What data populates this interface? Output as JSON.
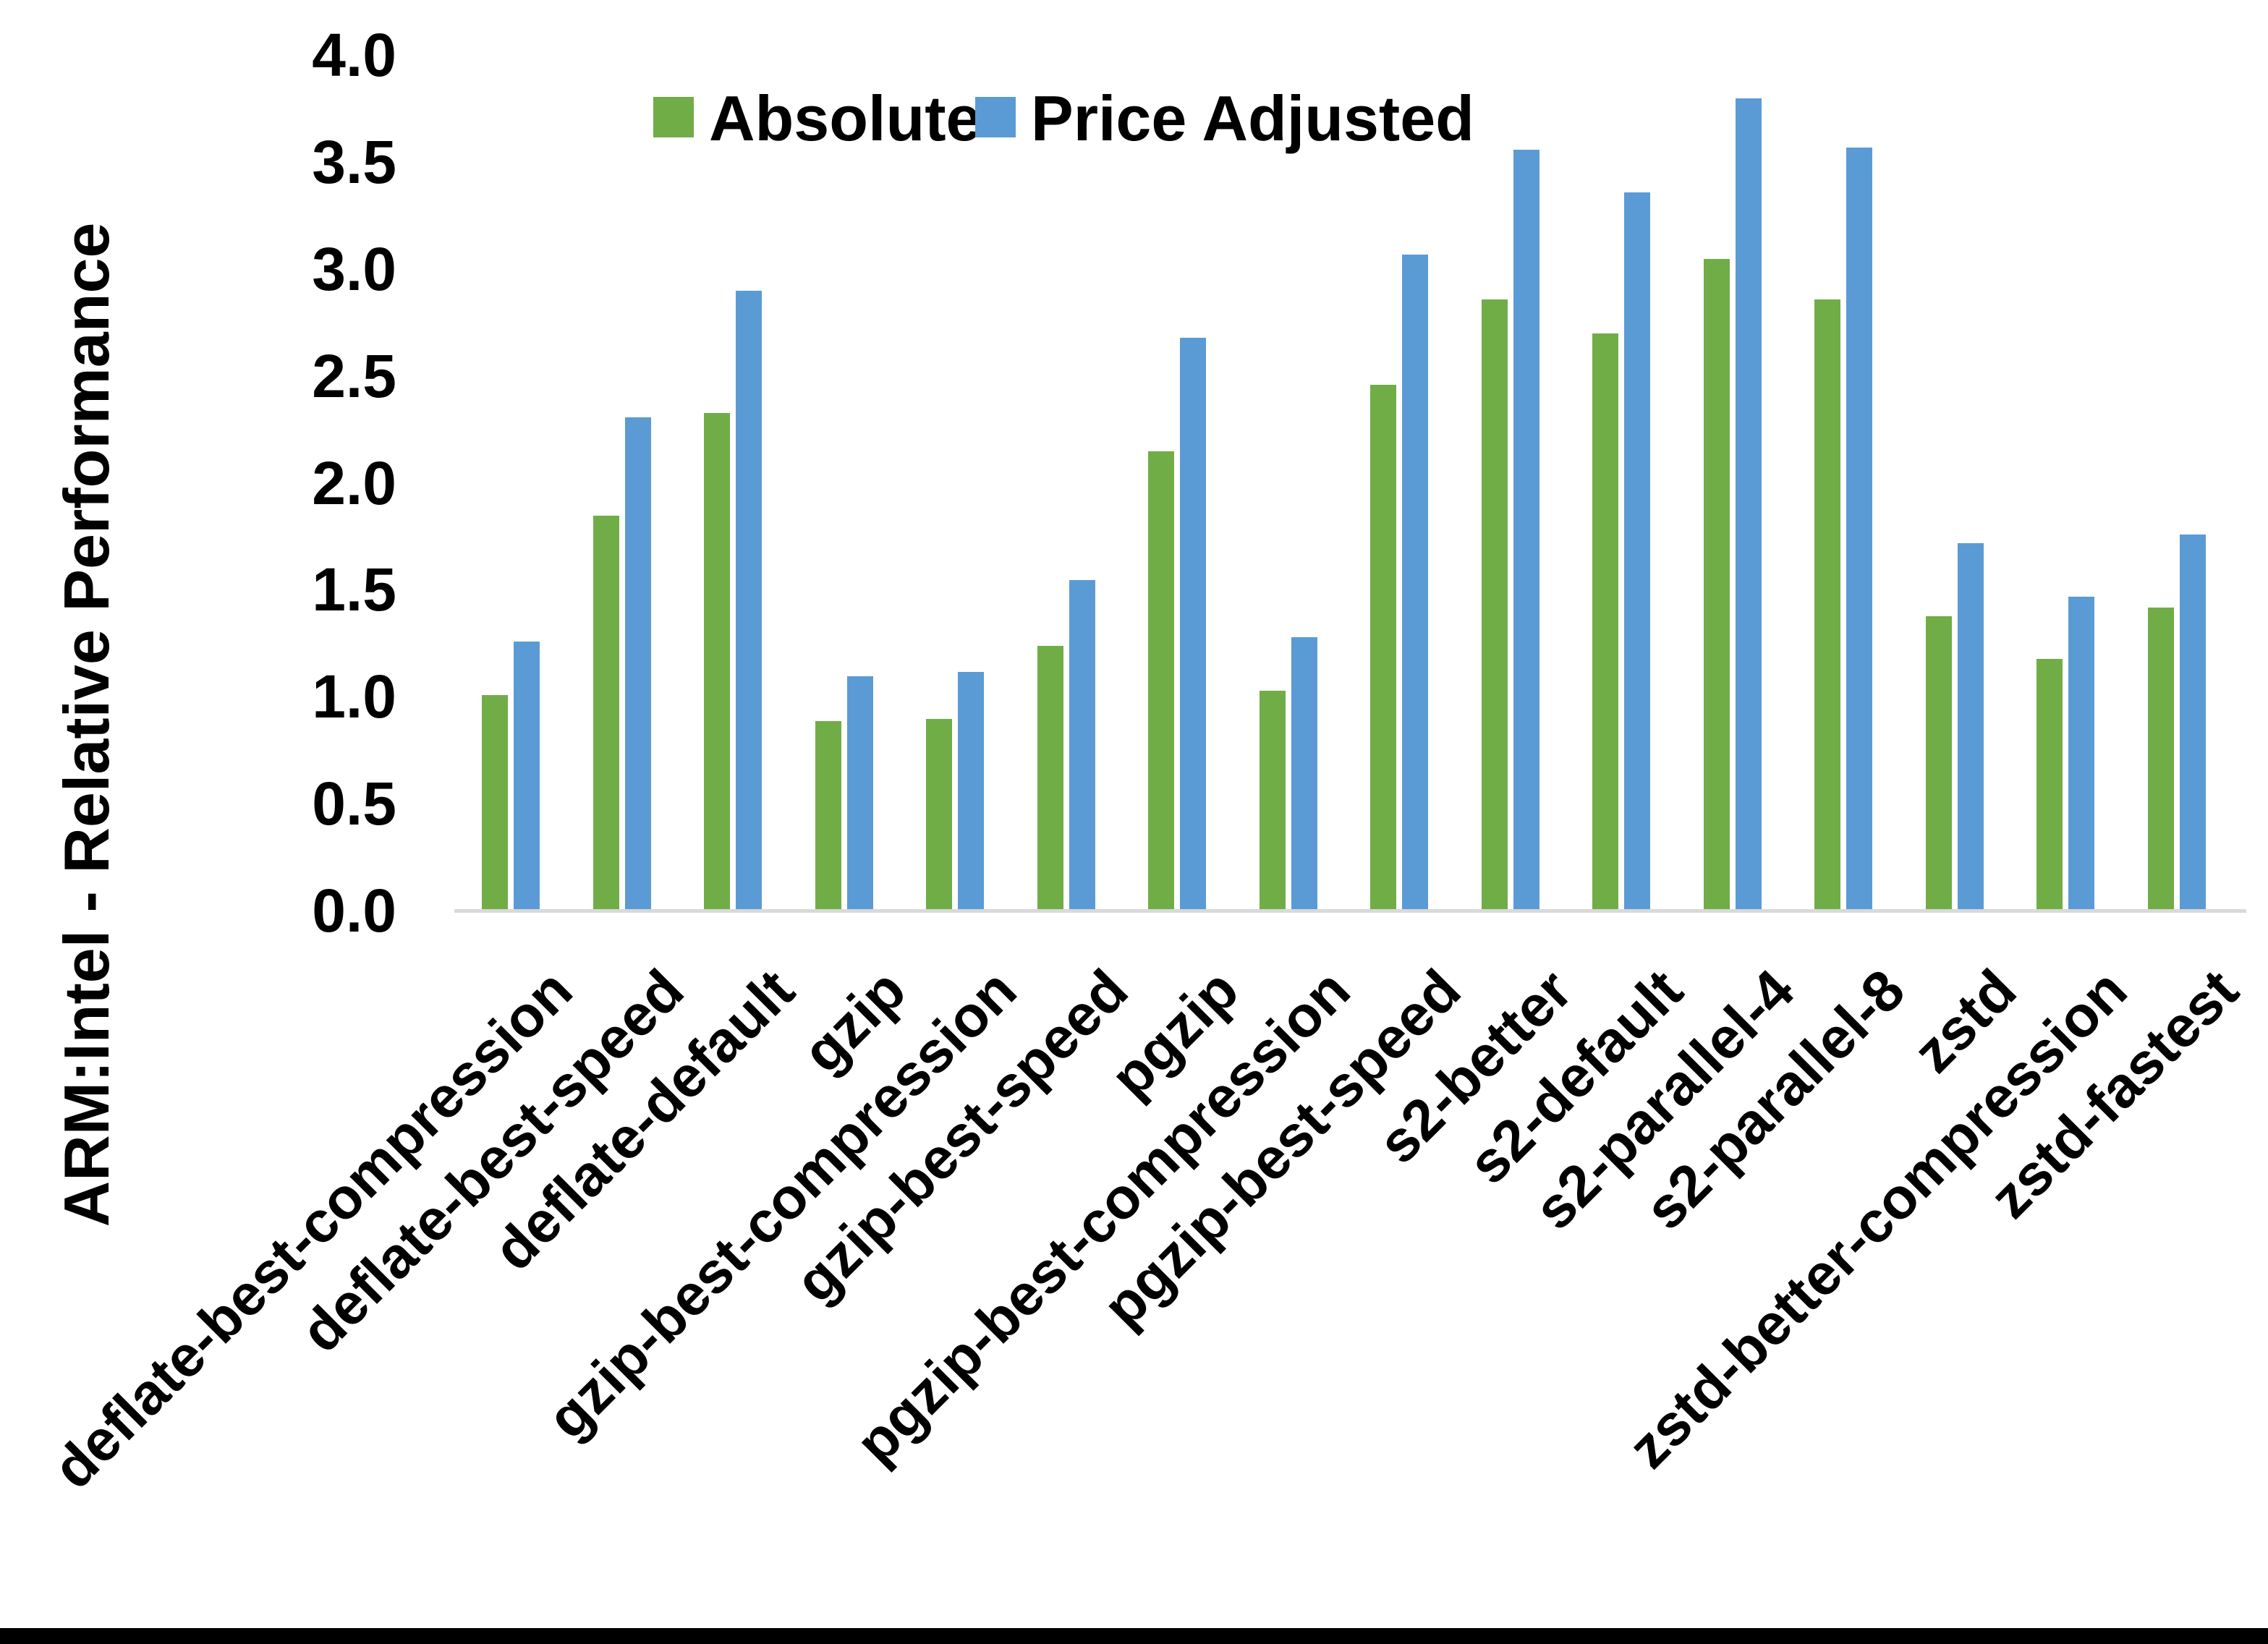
{
  "y_axis": {
    "title": "ARM:Intel - Relative Performance",
    "tick_labels": [
      "0.0",
      "0.5",
      "1.0",
      "1.5",
      "2.0",
      "2.5",
      "3.0",
      "3.5",
      "4.0"
    ]
  },
  "legend": {
    "items": [
      {
        "label": "Absolute",
        "color": "#70AD47"
      },
      {
        "label": "Price Adjusted",
        "color": "#5B9BD5"
      }
    ]
  },
  "colors": {
    "absolute_green": "#70AD47",
    "price_adjusted_blue": "#5B9BD5",
    "axis_line": "#D9D9D9",
    "text": "#000000",
    "bottom_rule": "#000000"
  },
  "chart_data": {
    "type": "bar",
    "title": "",
    "xlabel": "",
    "ylabel": "ARM:Intel - Relative Performance",
    "ylim": [
      0.0,
      4.0
    ],
    "ytick_step": 0.5,
    "grid": false,
    "legend_position": "top-center",
    "categories": [
      "deflate-best-compression",
      "deflate-best-speed",
      "deflate-default",
      "gzip",
      "gzip-best-compression",
      "gzip-best-speed",
      "pgzip",
      "pgzip-best-compression",
      "pgzip-best-speed",
      "s2-better",
      "s2-default",
      "s2-parallel-4",
      "s2-parallel-8",
      "zstd",
      "zstd-better-compression",
      "zstd-fastest"
    ],
    "series": [
      {
        "name": "Absolute",
        "color": "#70AD47",
        "values": [
          1.0,
          1.84,
          2.32,
          0.88,
          0.89,
          1.23,
          2.14,
          1.02,
          2.45,
          2.85,
          2.69,
          3.04,
          2.85,
          1.37,
          1.17,
          1.41
        ]
      },
      {
        "name": "Price Adjusted",
        "color": "#5B9BD5",
        "values": [
          1.25,
          2.3,
          2.89,
          1.09,
          1.11,
          1.54,
          2.67,
          1.27,
          3.06,
          3.55,
          3.35,
          3.79,
          3.56,
          1.71,
          1.46,
          1.75
        ]
      }
    ]
  }
}
